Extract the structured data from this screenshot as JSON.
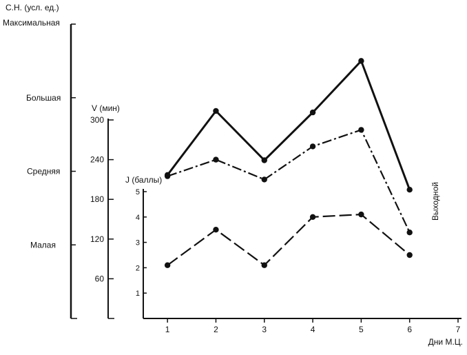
{
  "chart_data": {
    "type": "line",
    "title": "",
    "xlabel": "Дни М.Ц.",
    "x_ticks": [
      1,
      2,
      3,
      4,
      5,
      6,
      7
    ],
    "xlim": [
      0.5,
      7
    ],
    "axes": {
      "load": {
        "label": "С.Н. (усл. ед.)",
        "levels": [
          "Малая",
          "Средняя",
          "Большая",
          "Максимальная"
        ]
      },
      "volume": {
        "label": "V (мин)",
        "ticks": [
          60,
          120,
          180,
          240,
          300
        ],
        "ylim": [
          0,
          300
        ]
      },
      "score": {
        "label": "J (баллы)",
        "ticks": [
          1,
          2,
          3,
          4,
          5
        ],
        "ylim": [
          0,
          5
        ]
      }
    },
    "series": [
      {
        "axis": "load",
        "style": "solid",
        "x": [
          1,
          2,
          3,
          4,
          5,
          6
        ],
        "values": [
          1.95,
          2.82,
          2.15,
          2.8,
          3.5,
          1.75
        ]
      },
      {
        "axis": "volume",
        "style": "dash-dot",
        "x": [
          1,
          2,
          3,
          4,
          5,
          6
        ],
        "values": [
          215,
          240,
          210,
          260,
          285,
          130
        ]
      },
      {
        "axis": "score",
        "style": "long-dash",
        "x": [
          1,
          2,
          3,
          4,
          5,
          6
        ],
        "values": [
          2.1,
          3.5,
          2.1,
          4.0,
          4.1,
          2.5
        ]
      }
    ],
    "annotations": [
      {
        "text": "Выходной",
        "x": 6.4
      }
    ],
    "grid": false,
    "legend": "none",
    "colors": {
      "ink": "#111111",
      "background": "#ffffff"
    }
  }
}
